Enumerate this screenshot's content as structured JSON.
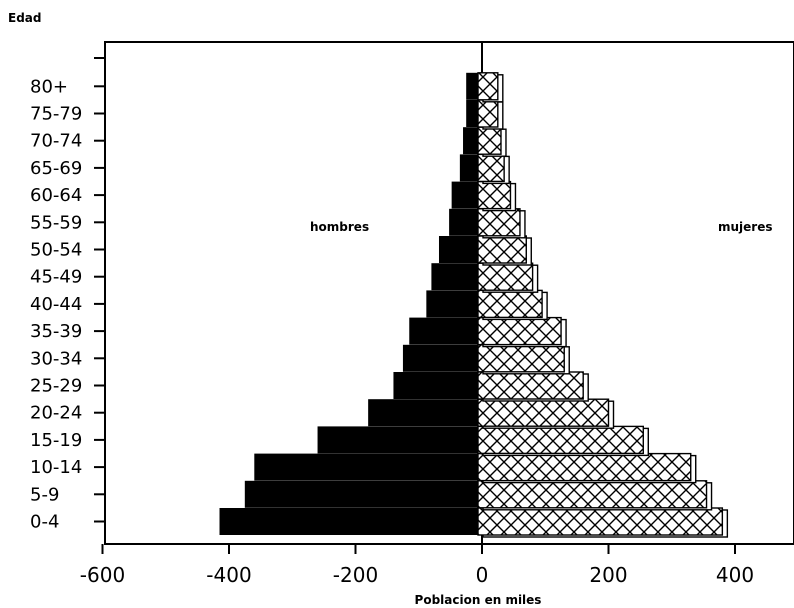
{
  "chart_data": {
    "type": "bar",
    "orientation": "horizontal",
    "style": "population-pyramid",
    "ylabel": "Edad",
    "xlabel": "Poblacion en miles",
    "categories": [
      "0-4",
      "5-9",
      "10-14",
      "15-19",
      "20-24",
      "25-29",
      "30-34",
      "35-39",
      "40-44",
      "45-49",
      "50-54",
      "55-59",
      "60-64",
      "65-69",
      "70-74",
      "75-79",
      "80+"
    ],
    "series": [
      {
        "name": "hombres",
        "side": "left",
        "fill": "solid",
        "color": "#000000",
        "values": [
          -415,
          -375,
          -360,
          -260,
          -180,
          -140,
          -125,
          -115,
          -88,
          -80,
          -68,
          -52,
          -48,
          -35,
          -30,
          -25,
          -25
        ]
      },
      {
        "name": "mujeres",
        "side": "right",
        "fill": "crosshatch",
        "color": "#000000",
        "values": [
          380,
          355,
          330,
          255,
          200,
          160,
          130,
          125,
          95,
          80,
          70,
          60,
          45,
          35,
          30,
          25,
          25
        ]
      }
    ],
    "xticks": [
      -600,
      -400,
      -200,
      0,
      200,
      400
    ],
    "xtick_labels": [
      "-600",
      "-400",
      "-200",
      "0",
      "200",
      "400"
    ],
    "xlim": [
      -600,
      500
    ],
    "grid": false,
    "legend": "none"
  }
}
